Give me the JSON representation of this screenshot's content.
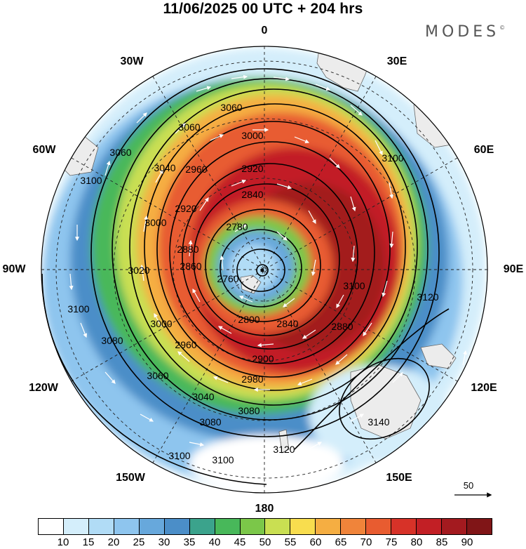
{
  "title": "11/06/2025  00 UTC  + 204 hrs",
  "brand": {
    "text": "MODES",
    "mark": "©"
  },
  "longitude_labels": [
    "0",
    "30E",
    "60E",
    "90E",
    "120E",
    "150E",
    "180",
    "150W",
    "120W",
    "90W",
    "60W",
    "30W"
  ],
  "contour_labels": [
    "3060",
    "3060",
    "3000",
    "3040",
    "2960",
    "2920",
    "2840",
    "2780",
    "3060",
    "2920",
    "2880",
    "3000",
    "3020",
    "2860",
    "2760",
    "3100",
    "3100",
    "2800",
    "2840",
    "2880",
    "3000",
    "2960",
    "2900",
    "3080",
    "3060",
    "2980",
    "3040",
    "3080",
    "3100",
    "3100",
    "3120",
    "3140",
    "3120",
    "3100",
    "3100",
    "3080"
  ],
  "colorbar": {
    "labels": [
      "10",
      "15",
      "20",
      "25",
      "30",
      "35",
      "40",
      "45",
      "50",
      "55",
      "60",
      "65",
      "70",
      "75",
      "80",
      "85",
      "90"
    ],
    "colors": [
      "#ffffff",
      "#d4eefb",
      "#b1dcf6",
      "#8ec5ee",
      "#67a8dc",
      "#4b8ec8",
      "#3ba38c",
      "#48b85a",
      "#7bc749",
      "#c9df52",
      "#f8dd4e",
      "#f5ae42",
      "#f0843a",
      "#e85c30",
      "#d73228",
      "#c21f25",
      "#a31a1f",
      "#801517"
    ]
  },
  "vector_reference": "50",
  "map": {
    "projection": "polar stereographic (south)",
    "field": "wind speed + geopotential height",
    "colors": {
      "land": "#ececec",
      "coast": "#666666",
      "contour": "#000000",
      "vector": "#ffffff"
    }
  }
}
